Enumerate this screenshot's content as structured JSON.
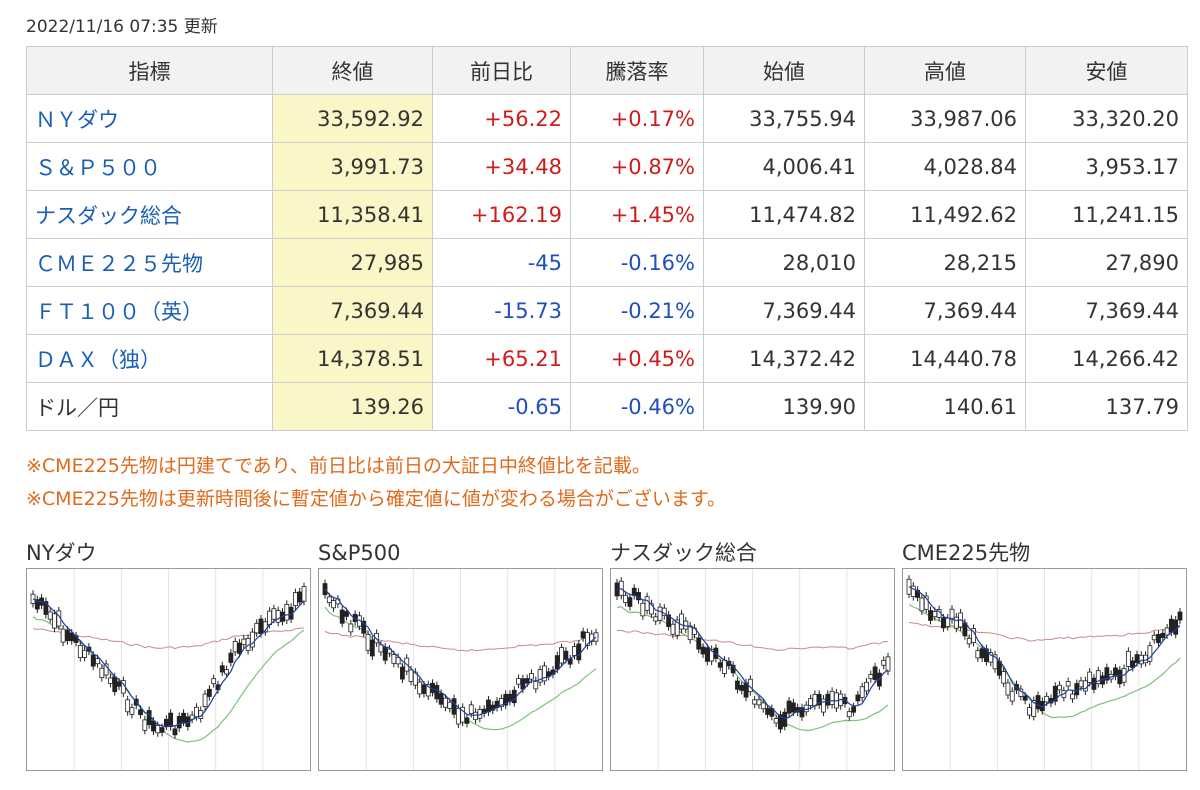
{
  "timestamp": "2022/11/16 07:35 更新",
  "table": {
    "headers": [
      "指標",
      "終値",
      "前日比",
      "騰落率",
      "始値",
      "高値",
      "安値"
    ],
    "rows": [
      {
        "name": "ＮＹダウ",
        "link": true,
        "close": "33,592.92",
        "change": "+56.22",
        "rate": "+0.17%",
        "open": "33,755.94",
        "high": "33,987.06",
        "low": "33,320.20",
        "dir": "up"
      },
      {
        "name": "Ｓ＆Ｐ５００",
        "link": true,
        "close": "3,991.73",
        "change": "+34.48",
        "rate": "+0.87%",
        "open": "4,006.41",
        "high": "4,028.84",
        "low": "3,953.17",
        "dir": "up"
      },
      {
        "name": "ナスダック総合",
        "link": true,
        "close": "11,358.41",
        "change": "+162.19",
        "rate": "+1.45%",
        "open": "11,474.82",
        "high": "11,492.62",
        "low": "11,241.15",
        "dir": "up"
      },
      {
        "name": "ＣＭＥ２２５先物",
        "link": true,
        "close": "27,985",
        "change": "-45",
        "rate": "-0.16%",
        "open": "28,010",
        "high": "28,215",
        "low": "27,890",
        "dir": "down"
      },
      {
        "name": "ＦＴ１００（英）",
        "link": true,
        "close": "7,369.44",
        "change": "-15.73",
        "rate": "-0.21%",
        "open": "7,369.44",
        "high": "7,369.44",
        "low": "7,369.44",
        "dir": "down"
      },
      {
        "name": "ＤＡＸ（独）",
        "link": true,
        "close": "14,378.51",
        "change": "+65.21",
        "rate": "+0.45%",
        "open": "14,372.42",
        "high": "14,440.78",
        "low": "14,266.42",
        "dir": "up"
      },
      {
        "name": "ドル／円",
        "link": false,
        "close": "139.26",
        "change": "-0.65",
        "rate": "-0.46%",
        "open": "139.90",
        "high": "140.61",
        "low": "137.79",
        "dir": "down"
      }
    ]
  },
  "notes": [
    "※CME225先物は円建てであり、前日比は前日の大証日中終値比を記載。",
    "※CME225先物は更新時間後に暫定値から確定値に値が変わる場合がございます。"
  ],
  "charts": [
    {
      "title": "NYダウ"
    },
    {
      "title": "S&P500"
    },
    {
      "title": "ナスダック総合"
    },
    {
      "title": "CME225先物"
    }
  ],
  "colors": {
    "up": "#d01b1b",
    "down": "#1f4fc0",
    "link": "#1a5fb4",
    "note": "#e06a1c",
    "close_bg": "#faf6c8"
  }
}
